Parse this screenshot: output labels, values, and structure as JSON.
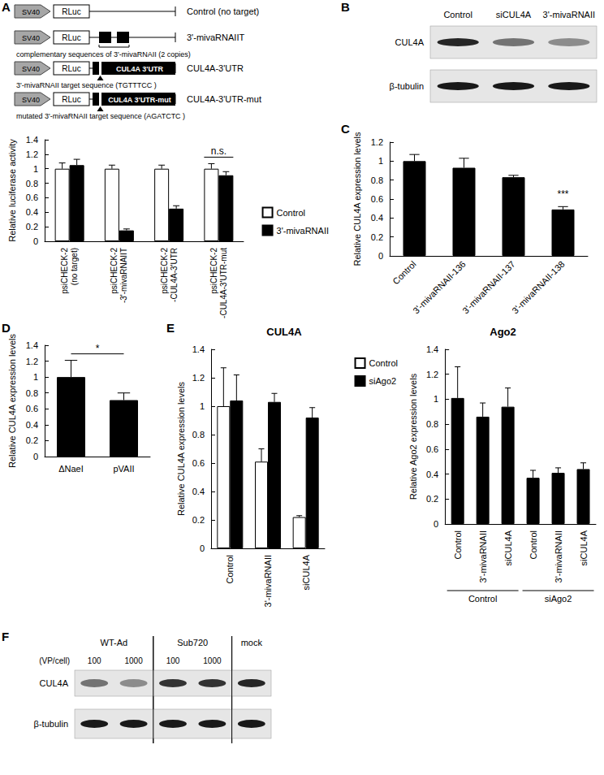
{
  "panel_labels": [
    "A",
    "B",
    "C",
    "D",
    "E",
    "F"
  ],
  "schematic": {
    "promoter": "SV40",
    "reporter": "RLuc",
    "constructs": [
      {
        "label": "Control (no target)",
        "kind": "none"
      },
      {
        "label": "3'-mivaRNAIIT",
        "kind": "repeat",
        "note": "complementary sequences of 3'-mivaRNAII (2 copies)"
      },
      {
        "label": "CUL4A-3'UTR",
        "kind": "utr",
        "insert": "CUL4A 3'UTR",
        "note": "3'-mivaRNAII target sequence (TGTTTCC )"
      },
      {
        "label": "CUL4A-3'UTR-mut",
        "kind": "utr",
        "insert": "CUL4A 3'UTR-mut",
        "note": "mutated 3'-mivaRNAII target sequence (AGATCTC )"
      }
    ]
  },
  "blots": [
    {
      "lanes": [
        "Control",
        "siCUL4A",
        "3'-mivaRNAII"
      ],
      "rows": [
        "CUL4A",
        "β-tubulin"
      ]
    },
    {
      "unit": "(VP/cell)",
      "groups": [
        {
          "label": "WT-Ad",
          "lanes": [
            100,
            1000
          ]
        },
        {
          "label": "Sub720",
          "lanes": [
            100,
            1000
          ]
        },
        {
          "label": "mock",
          "lanes": []
        }
      ],
      "rows": [
        "CUL4A",
        "β-tubulin"
      ]
    }
  ],
  "chart_data": [
    {
      "type": "bar",
      "ylabel": "Relative luciferase activity",
      "categories": [
        "psiCHECK-2\n(no target)",
        "psiCHECK-2\n-3'-mivaRNAIIT",
        "psiCHECK-2\n-CUL4A-3'UTR",
        "psiCHECK-2\n-CUL4A-3'UTR-mut"
      ],
      "series": [
        {
          "name": "Control",
          "color": "#ffffff",
          "values": [
            1,
            1,
            1,
            1
          ],
          "errors": [
            0.08,
            0.05,
            0.05,
            0.07
          ]
        },
        {
          "name": "3'-mivaRNAII",
          "color": "#000000",
          "values": [
            1.05,
            0.15,
            0.45,
            0.91
          ],
          "errors": [
            0.08,
            0.02,
            0.04,
            0.05
          ]
        }
      ],
      "ylim": [
        0,
        1.4
      ],
      "yticks": [
        0,
        0.2,
        0.4,
        0.6,
        0.8,
        1,
        1.2,
        1.4
      ],
      "grid": false,
      "legend": "right",
      "annotations": [
        {
          "text": "n.s.",
          "categories": [
            "psiCHECK-2\n-CUL4A-3'UTR-mut"
          ]
        }
      ]
    },
    {
      "type": "bar",
      "ylabel": "Relative CUL4A expression levels",
      "categories": [
        "Control",
        "3'-mivaRNAII-136",
        "3'-mivaRNAII-137",
        "3'-mivaRNAII-138"
      ],
      "values": [
        1,
        0.93,
        0.83,
        0.49
      ],
      "errors": [
        0.07,
        0.1,
        0.02,
        0.03
      ],
      "color": "#000000",
      "ylim": [
        0,
        1.2
      ],
      "yticks": [
        0,
        0.2,
        0.4,
        0.6,
        0.8,
        1,
        1.2
      ],
      "grid": false,
      "annotations": [
        {
          "text": "***",
          "categories": [
            "3'-mivaRNAII-138"
          ]
        }
      ]
    },
    {
      "type": "bar",
      "ylabel": "Relative CUL4A expression levels",
      "categories": [
        "ΔNaeI",
        "pVAII"
      ],
      "values": [
        1,
        0.71
      ],
      "errors": [
        0.21,
        0.09
      ],
      "color": "#000000",
      "ylim": [
        0,
        1.4
      ],
      "yticks": [
        0,
        0.2,
        0.4,
        0.6,
        0.8,
        1,
        1.2,
        1.4
      ],
      "grid": false,
      "annotations": [
        {
          "text": "*",
          "categories": [
            "ΔNaeI",
            "pVAII"
          ]
        }
      ]
    },
    {
      "type": "bar",
      "title": "CUL4A",
      "ylabel": "Relative CUL4A expression levels",
      "categories": [
        "Control",
        "3'-mivaRNAII",
        "siCUL4A"
      ],
      "series": [
        {
          "name": "Control",
          "color": "#ffffff",
          "values": [
            1,
            0.61,
            0.22
          ],
          "errors": [
            0.27,
            0.09,
            0.01
          ]
        },
        {
          "name": "siAgo2",
          "color": "#000000",
          "values": [
            1.04,
            1.03,
            0.92
          ],
          "errors": [
            0.18,
            0.06,
            0.07
          ]
        }
      ],
      "ylim": [
        0,
        1.4
      ],
      "yticks": [
        0,
        0.2,
        0.4,
        0.6,
        0.8,
        1,
        1.2,
        1.4
      ],
      "grid": false,
      "legend": "upper right"
    },
    {
      "type": "bar",
      "title": "Ago2",
      "ylabel": "Relative Ago2 expression levels",
      "categories": [
        "Control",
        "3'-mivaRNAII",
        "siCUL4A",
        "Control",
        "3'-mivaRNAII",
        "siCUL4A"
      ],
      "group_labels": [
        "Control",
        "siAgo2"
      ],
      "values": [
        1.01,
        0.86,
        0.94,
        0.37,
        0.41,
        0.44
      ],
      "errors": [
        0.25,
        0.11,
        0.15,
        0.06,
        0.04,
        0.05
      ],
      "color": "#000000",
      "ylim": [
        0,
        1.4
      ],
      "yticks": [
        0,
        0.2,
        0.4,
        0.6,
        0.8,
        1,
        1.2,
        1.4
      ],
      "grid": false
    }
  ]
}
